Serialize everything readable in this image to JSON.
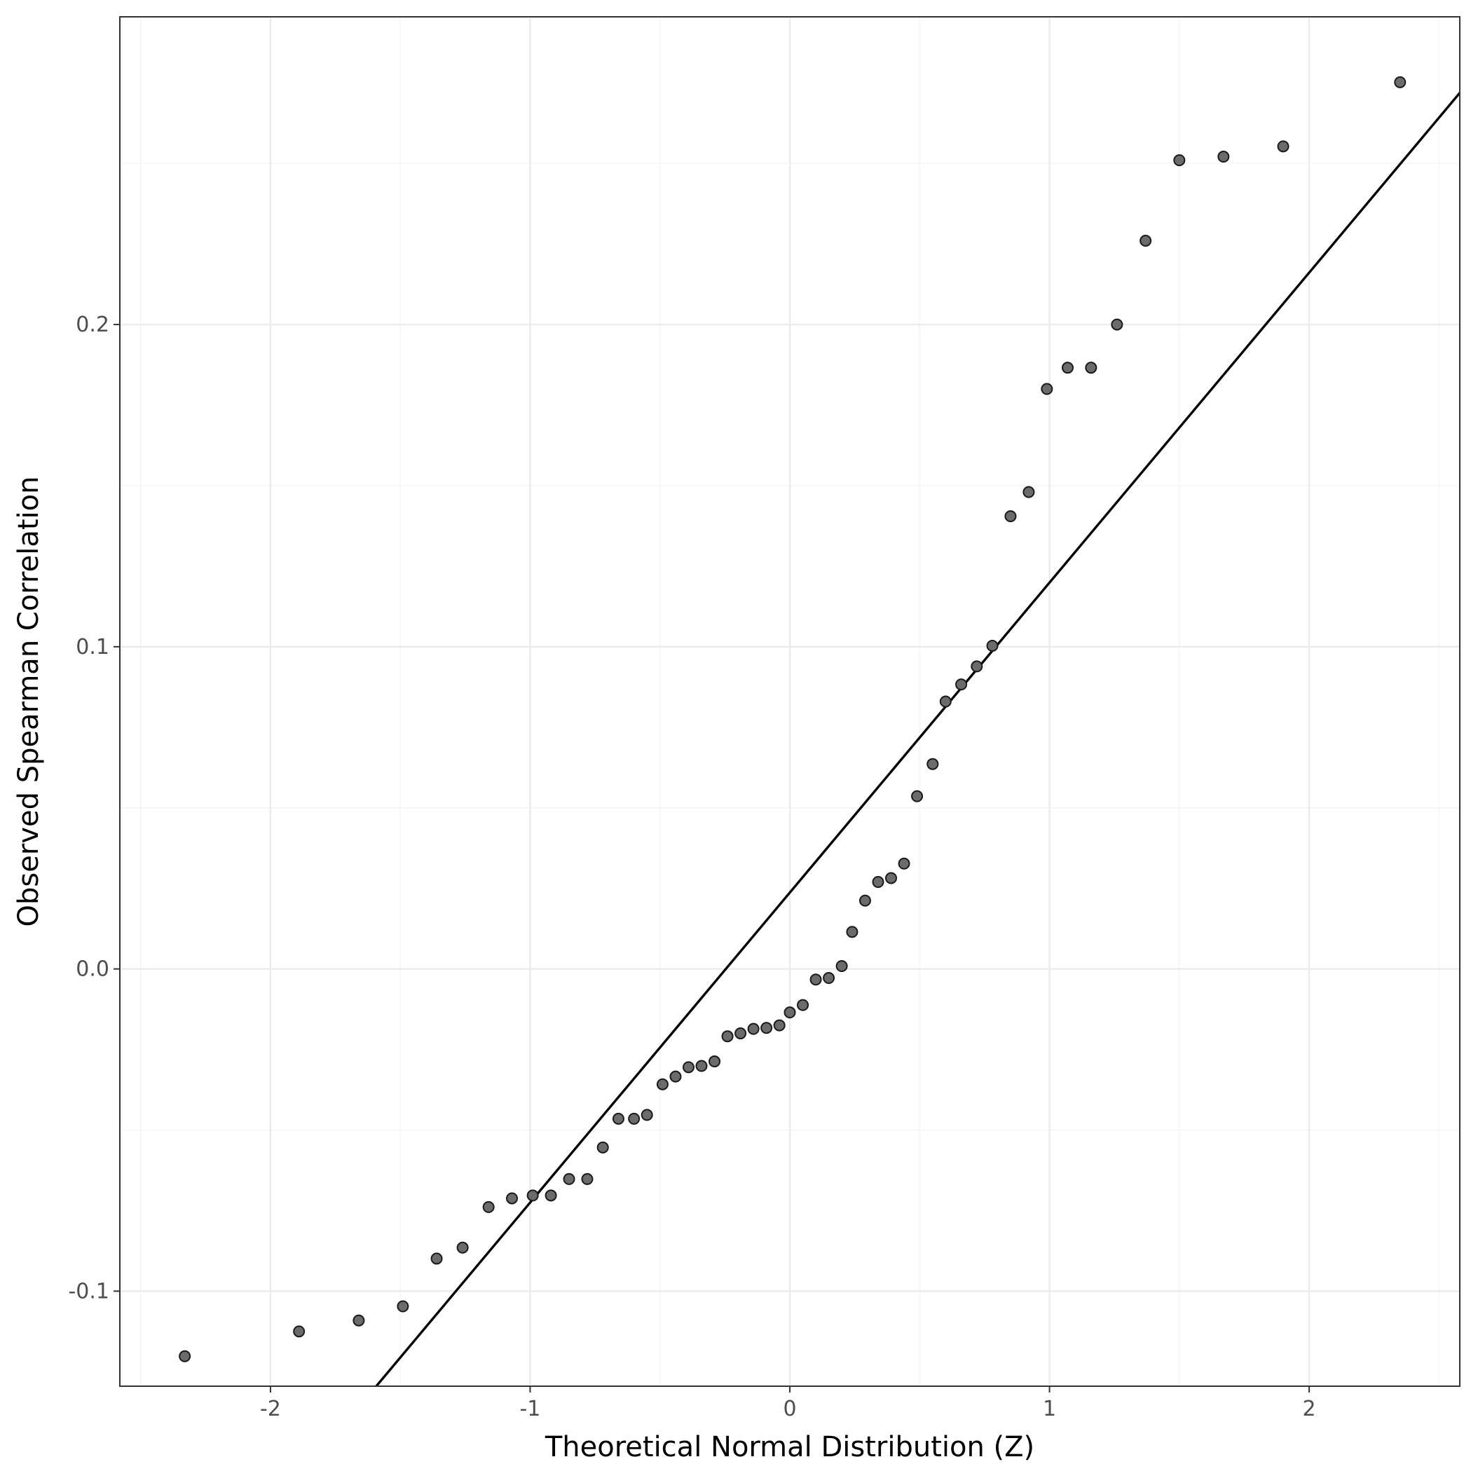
{
  "chart_data": {
    "type": "scatter",
    "xlabel": "Theoretical Normal Distribution (Z)",
    "ylabel": "Observed Spearman Correlation",
    "xlim": [
      -2.58,
      2.58
    ],
    "ylim": [
      -0.1295,
      0.2955
    ],
    "x_ticks": [
      -2,
      -1,
      0,
      1,
      2
    ],
    "x_tick_labels": [
      "-2",
      "-1",
      "0",
      "1",
      "2"
    ],
    "y_ticks": [
      -0.1,
      0.0,
      0.1,
      0.2
    ],
    "y_tick_labels": [
      "-0.1",
      "0.0",
      "0.1",
      "0.2"
    ],
    "grid": true,
    "reference_line": {
      "intercept": 0.0237,
      "slope": 0.0962
    },
    "points": [
      {
        "x": -2.33,
        "y": -0.1202
      },
      {
        "x": -1.89,
        "y": -0.1125
      },
      {
        "x": -1.66,
        "y": -0.1091
      },
      {
        "x": -1.49,
        "y": -0.1047
      },
      {
        "x": -1.36,
        "y": -0.0899
      },
      {
        "x": -1.26,
        "y": -0.0865
      },
      {
        "x": -1.16,
        "y": -0.0739
      },
      {
        "x": -1.07,
        "y": -0.0712
      },
      {
        "x": -0.99,
        "y": -0.0703
      },
      {
        "x": -0.92,
        "y": -0.0703
      },
      {
        "x": -0.85,
        "y": -0.0652
      },
      {
        "x": -0.78,
        "y": -0.0652
      },
      {
        "x": -0.72,
        "y": -0.0554
      },
      {
        "x": -0.66,
        "y": -0.0465
      },
      {
        "x": -0.6,
        "y": -0.0465
      },
      {
        "x": -0.55,
        "y": -0.0453
      },
      {
        "x": -0.49,
        "y": -0.0358
      },
      {
        "x": -0.44,
        "y": -0.0334
      },
      {
        "x": -0.39,
        "y": -0.0305
      },
      {
        "x": -0.34,
        "y": -0.0301
      },
      {
        "x": -0.29,
        "y": -0.0287
      },
      {
        "x": -0.24,
        "y": -0.0209
      },
      {
        "x": -0.19,
        "y": -0.02
      },
      {
        "x": -0.14,
        "y": -0.0186
      },
      {
        "x": -0.09,
        "y": -0.0183
      },
      {
        "x": -0.04,
        "y": -0.0175
      },
      {
        "x": 0.0,
        "y": -0.0135
      },
      {
        "x": 0.05,
        "y": -0.0112
      },
      {
        "x": 0.1,
        "y": -0.0033
      },
      {
        "x": 0.15,
        "y": -0.0028
      },
      {
        "x": 0.2,
        "y": 0.0009
      },
      {
        "x": 0.24,
        "y": 0.0115
      },
      {
        "x": 0.29,
        "y": 0.0212
      },
      {
        "x": 0.34,
        "y": 0.027
      },
      {
        "x": 0.39,
        "y": 0.0282
      },
      {
        "x": 0.44,
        "y": 0.0327
      },
      {
        "x": 0.49,
        "y": 0.0536
      },
      {
        "x": 0.55,
        "y": 0.0636
      },
      {
        "x": 0.6,
        "y": 0.083
      },
      {
        "x": 0.66,
        "y": 0.0883
      },
      {
        "x": 0.72,
        "y": 0.0939
      },
      {
        "x": 0.78,
        "y": 0.1003
      },
      {
        "x": 0.85,
        "y": 0.1405
      },
      {
        "x": 0.92,
        "y": 0.148
      },
      {
        "x": 0.99,
        "y": 0.18
      },
      {
        "x": 1.07,
        "y": 0.1866
      },
      {
        "x": 1.16,
        "y": 0.1866
      },
      {
        "x": 1.26,
        "y": 0.2
      },
      {
        "x": 1.37,
        "y": 0.226
      },
      {
        "x": 1.5,
        "y": 0.251
      },
      {
        "x": 1.67,
        "y": 0.2521
      },
      {
        "x": 1.9,
        "y": 0.2553
      },
      {
        "x": 2.35,
        "y": 0.2752
      }
    ]
  }
}
